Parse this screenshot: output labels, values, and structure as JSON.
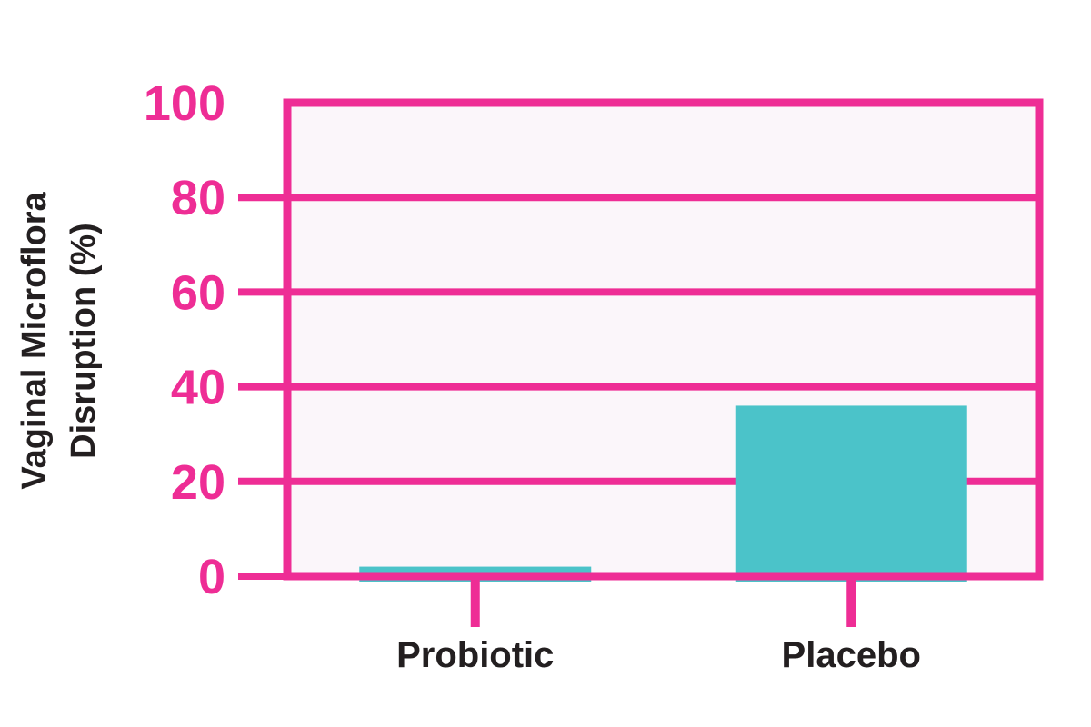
{
  "chart_data": {
    "type": "bar",
    "categories": [
      "Probiotic",
      "Placebo"
    ],
    "values": [
      2,
      36
    ],
    "ylabel_lines": [
      "Vaginal Microflora",
      "Disruption (%)"
    ],
    "ylim": [
      0,
      100
    ],
    "yticks": [
      0,
      20,
      40,
      60,
      80,
      100
    ],
    "grid": true
  },
  "colors": {
    "accent": "#ee2d95",
    "bar": "#4bc3c9",
    "plot_bg": "#fbf6fa",
    "text": "#231f20"
  }
}
